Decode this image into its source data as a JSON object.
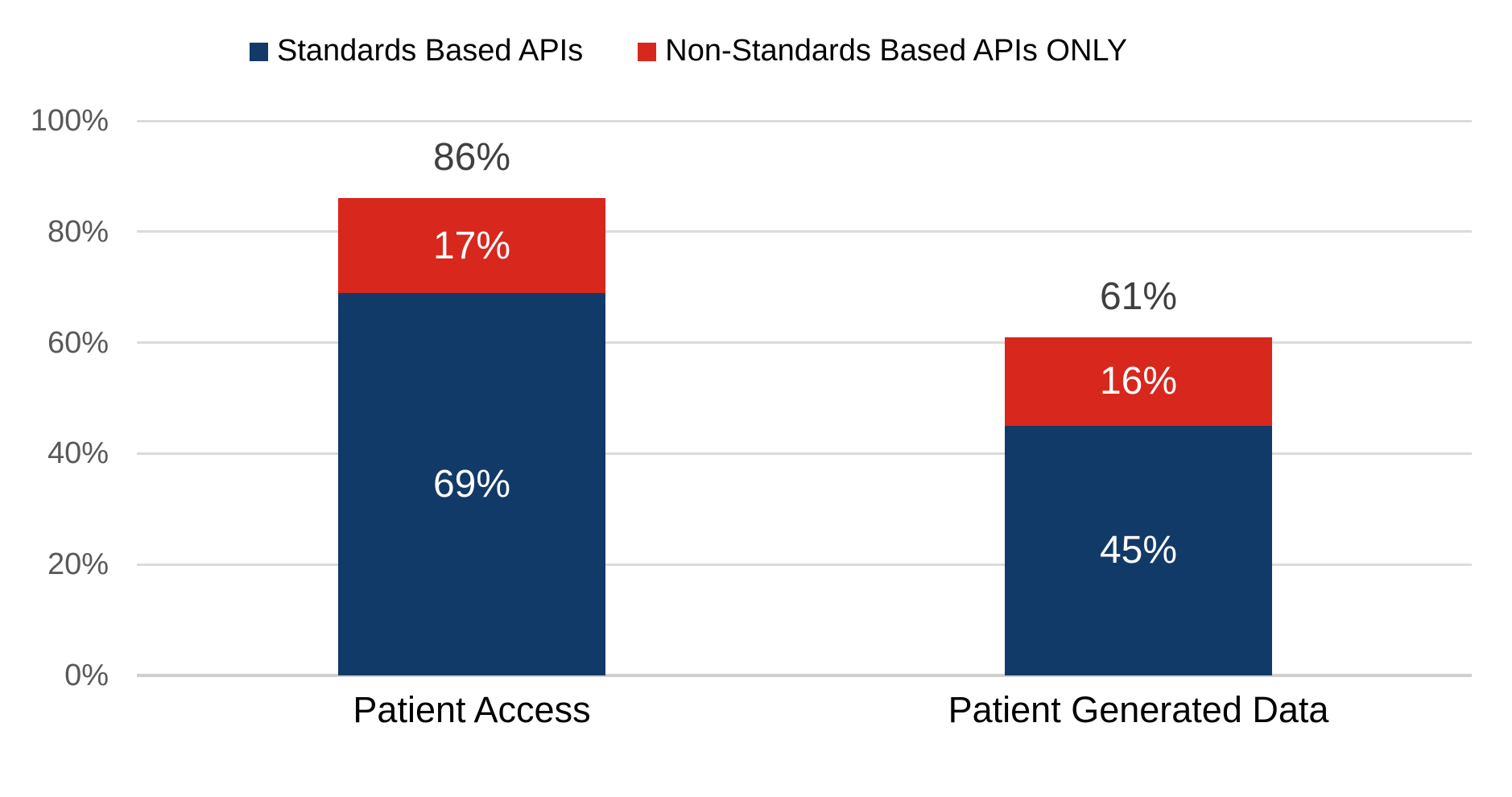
{
  "chart_data": {
    "type": "bar",
    "stacked": true,
    "categories": [
      "Patient Access",
      "Patient Generated Data"
    ],
    "series": [
      {
        "name": "Standards Based APIs",
        "color": "#123A68",
        "values": [
          69,
          45
        ],
        "labels": [
          "69%",
          "45%"
        ]
      },
      {
        "name": "Non-Standards Based APIs ONLY",
        "color": "#D8271D",
        "values": [
          17,
          16
        ],
        "labels": [
          "17%",
          "16%"
        ]
      }
    ],
    "totals": {
      "values": [
        86,
        61
      ],
      "labels": [
        "86%",
        "61%"
      ]
    },
    "y_axis": {
      "min": 0,
      "max": 100,
      "tick_step": 20,
      "tick_labels": [
        "0%",
        "20%",
        "40%",
        "60%",
        "80%",
        "100%"
      ]
    },
    "grid": true,
    "legend_position": "top",
    "styles": {
      "grid_color": "#DBDBDB",
      "baseline_color": "#CFCFCF",
      "y_tick_color": "#595959",
      "total_label_color": "#404040",
      "category_label_color": "#000000",
      "segment_label_color": "#FFFFFF"
    }
  },
  "legend": {
    "items": [
      {
        "label": "Standards Based APIs",
        "color": "#123A68"
      },
      {
        "label": "Non-Standards Based APIs ONLY",
        "color": "#D8271D"
      }
    ]
  }
}
